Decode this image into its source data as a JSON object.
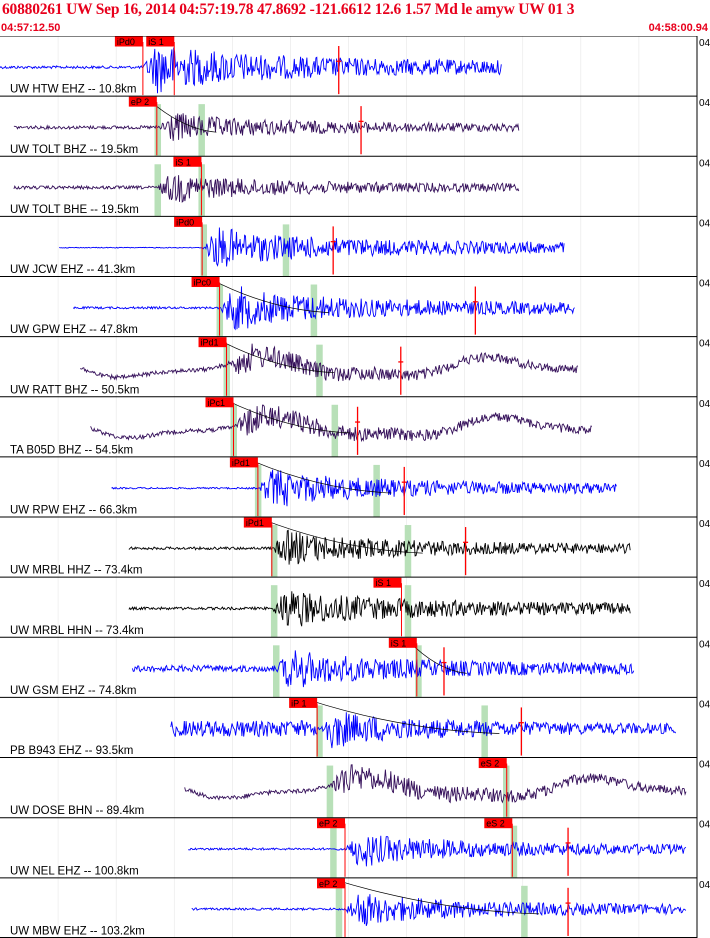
{
  "header": {
    "title": "60880261 UW Sep 16, 2014 04:57:19.78   47.8692 -121.6612 12.6 1.57 Md le amyw UW 01   3",
    "start_time": "04:57:12.50",
    "end_time": "04:58:00.94"
  },
  "colors": {
    "header_text": "#e8001c",
    "pick": "#ff0000",
    "theoretical": "#b8e0b8",
    "blue": "#0000ff",
    "purple": "#35105a",
    "black": "#000000"
  },
  "chart_data": {
    "type": "seismogram",
    "time_range": [
      "04:57:12.50",
      "04:58:00.94"
    ],
    "right_edge_label": "04",
    "traces": [
      {
        "label": "UW HTW EHZ -- 10.8km",
        "color": "blue",
        "noise": 0.05,
        "amp": 0.95,
        "sig_start": 0.205,
        "sig_end": 0.72,
        "p_code": "iPd0",
        "p_pick": 0.205,
        "s_code": "iS 1",
        "s_pick": 0.25,
        "green": [],
        "coda": 0.486,
        "arc": false,
        "long": false,
        "data_start": 0.0
      },
      {
        "label": "UW TOLT BHZ -- 19.5km",
        "color": "purple",
        "noise": 0.06,
        "amp": 0.55,
        "sig_start": 0.225,
        "sig_end": 0.745,
        "p_code": "eP 2",
        "p_pick": 0.225,
        "s_code": "",
        "s_pick": null,
        "green": [
          0.226,
          0.289
        ],
        "coda": 0.518,
        "arc": true,
        "long": false,
        "data_start": 0.02
      },
      {
        "label": "UW TOLT BHE -- 19.5km",
        "color": "purple",
        "noise": 0.06,
        "amp": 0.55,
        "sig_start": 0.225,
        "sig_end": 0.745,
        "p_code": "iS 1",
        "p_pick": 0.289,
        "s_code": "",
        "s_pick": null,
        "green": [
          0.226,
          0.289
        ],
        "coda": null,
        "arc": false,
        "long": false,
        "data_start": 0.02
      },
      {
        "label": "UW JCW EHZ -- 41.3km",
        "color": "blue",
        "noise": 0.015,
        "amp": 0.75,
        "sig_start": 0.29,
        "sig_end": 0.81,
        "p_code": "iPd0",
        "p_pick": 0.29,
        "s_code": "",
        "s_pick": null,
        "green": [
          0.292,
          0.41
        ],
        "coda": 0.478,
        "arc": false,
        "long": false,
        "data_start": 0.085
      },
      {
        "label": "UW GPW EHZ -- 47.8km",
        "color": "blue",
        "noise": 0.04,
        "amp": 0.8,
        "sig_start": 0.315,
        "sig_end": 0.825,
        "p_code": "iPc0",
        "p_pick": 0.315,
        "s_code": "",
        "s_pick": null,
        "green": [
          0.315,
          0.45
        ],
        "coda": 0.682,
        "arc": true,
        "long": false,
        "data_start": 0.105
      },
      {
        "label": "UW RATT BHZ -- 50.5km",
        "color": "purple",
        "noise": 0.08,
        "amp": 0.55,
        "sig_start": 0.325,
        "sig_end": 0.83,
        "p_code": "iPd1",
        "p_pick": 0.325,
        "s_code": "",
        "s_pick": null,
        "green": [
          0.325,
          0.458
        ],
        "coda": 0.575,
        "arc": true,
        "long": true,
        "data_start": 0.115
      },
      {
        "label": "TA B05D BHZ -- 54.5km",
        "color": "purple",
        "noise": 0.08,
        "amp": 0.55,
        "sig_start": 0.335,
        "sig_end": 0.85,
        "p_code": "iPc1",
        "p_pick": 0.335,
        "s_code": "",
        "s_pick": null,
        "green": [
          0.335,
          0.48
        ],
        "coda": 0.513,
        "arc": true,
        "long": true,
        "data_start": 0.13
      },
      {
        "label": "UW RPW EHZ -- 66.3km",
        "color": "blue",
        "noise": 0.03,
        "amp": 0.7,
        "sig_start": 0.37,
        "sig_end": 0.885,
        "p_code": "iPd1",
        "p_pick": 0.37,
        "s_code": "",
        "s_pick": null,
        "green": [
          0.37,
          0.54
        ],
        "coda": 0.58,
        "arc": true,
        "long": false,
        "data_start": 0.16
      },
      {
        "label": "UW MRBL HHZ -- 73.4km",
        "color": "black",
        "noise": 0.05,
        "amp": 0.65,
        "sig_start": 0.39,
        "sig_end": 0.905,
        "p_code": "iPd1",
        "p_pick": 0.39,
        "s_code": "",
        "s_pick": null,
        "green": [
          0.393,
          0.585
        ],
        "coda": 0.668,
        "arc": true,
        "long": false,
        "data_start": 0.185
      },
      {
        "label": "UW MRBL HHN -- 73.4km",
        "color": "black",
        "noise": 0.05,
        "amp": 0.75,
        "sig_start": 0.39,
        "sig_end": 0.905,
        "p_code": "iS 1",
        "p_pick": 0.576,
        "s_code": "",
        "s_pick": null,
        "green": [
          0.393,
          0.585
        ],
        "coda": null,
        "arc": false,
        "long": false,
        "data_start": 0.185
      },
      {
        "label": "UW GSM EHZ -- 74.8km",
        "color": "blue",
        "noise": 0.12,
        "amp": 0.75,
        "sig_start": 0.395,
        "sig_end": 0.91,
        "p_code": "iS 1",
        "p_pick": 0.598,
        "s_code": "",
        "s_pick": null,
        "green": [
          0.396,
          0.6
        ],
        "coda": 0.637,
        "arc": true,
        "long": false,
        "data_start": 0.19
      },
      {
        "label": "PB B943 EHZ -- 93.5km",
        "color": "blue",
        "noise": 0.3,
        "amp": 0.7,
        "sig_start": 0.455,
        "sig_end": 0.97,
        "p_code": "iP 1",
        "p_pick": 0.455,
        "s_code": "",
        "s_pick": null,
        "green": [
          0.458,
          0.695
        ],
        "coda": 0.748,
        "arc": true,
        "long": false,
        "data_start": 0.245
      },
      {
        "label": "UW DOSE BHN -- 89.4km",
        "color": "purple",
        "noise": 0.08,
        "amp": 0.6,
        "sig_start": 0.47,
        "sig_end": 0.985,
        "p_code": "eS 2",
        "p_pick": 0.727,
        "s_code": "",
        "s_pick": null,
        "green": [
          0.473,
          0.726
        ],
        "coda": null,
        "arc": false,
        "long": true,
        "data_start": 0.265
      },
      {
        "label": "UW NEL EHZ -- 100.8km",
        "color": "blue",
        "noise": 0.04,
        "amp": 0.65,
        "sig_start": 0.495,
        "sig_end": 0.985,
        "p_code": "eP 2",
        "p_pick": 0.495,
        "s_code": "eS 2",
        "s_pick": 0.735,
        "green": [
          0.478,
          0.737
        ],
        "coda": 0.815,
        "arc": false,
        "long": false,
        "data_start": 0.27
      },
      {
        "label": "UW MBW EHZ -- 103.2km",
        "color": "blue",
        "noise": 0.04,
        "amp": 0.65,
        "sig_start": 0.495,
        "sig_end": 0.985,
        "p_code": "eP 2",
        "p_pick": 0.495,
        "s_code": "",
        "s_pick": null,
        "green": [
          0.486,
          0.752
        ],
        "coda": 0.815,
        "arc": true,
        "long": false,
        "data_start": 0.275
      }
    ]
  }
}
